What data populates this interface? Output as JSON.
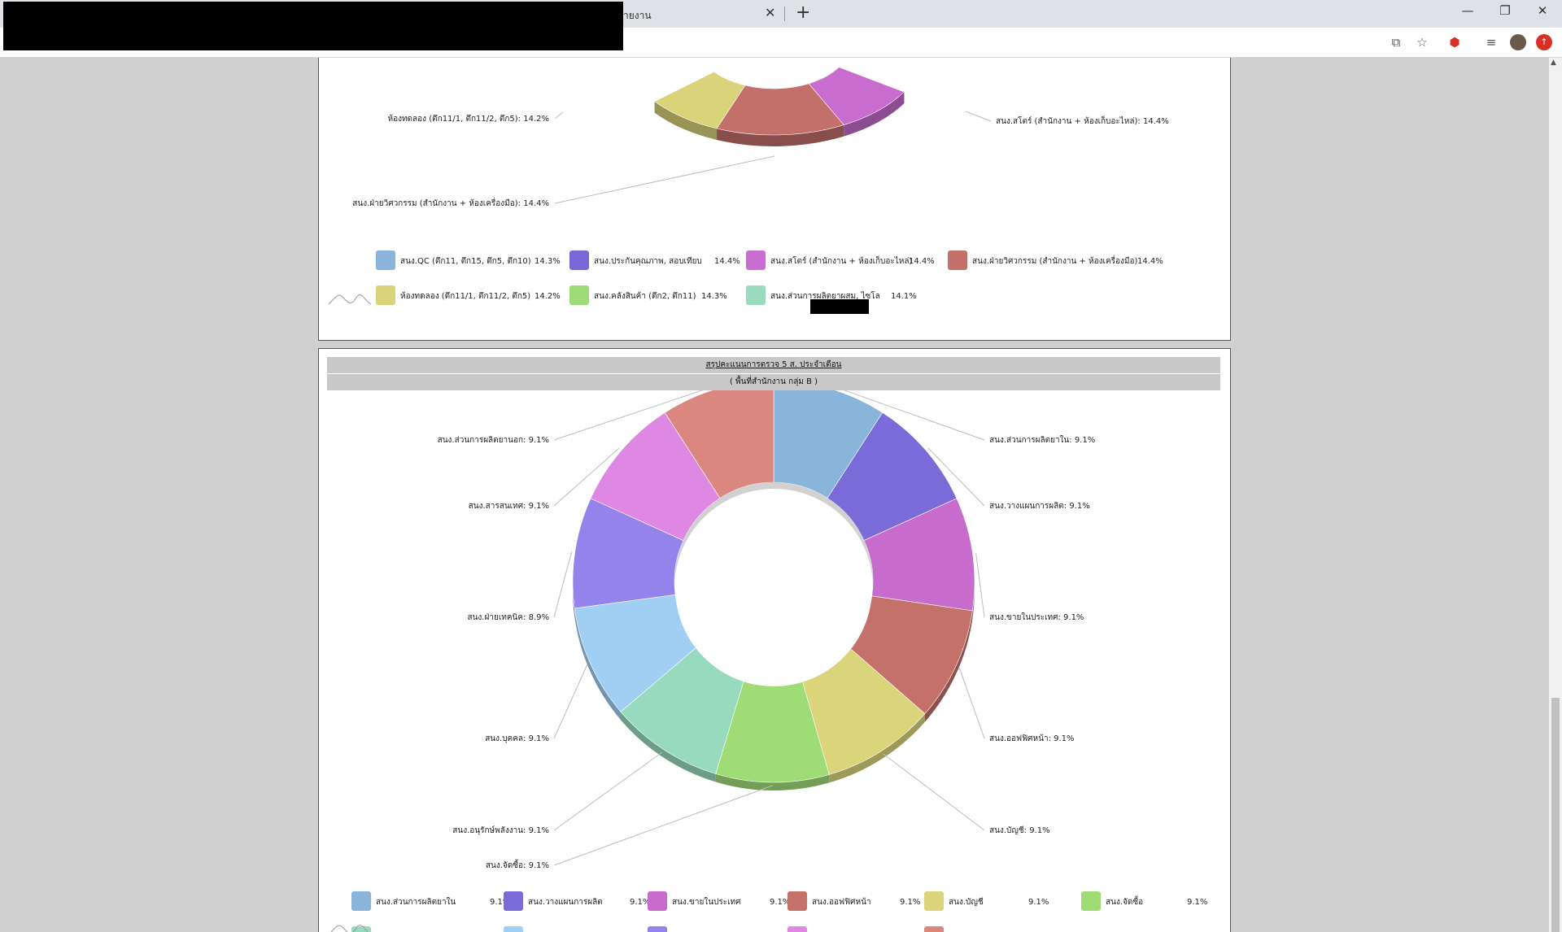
{
  "browser": {
    "tab_title": "ายงาน",
    "tab_close_icon": "close-icon",
    "new_tab_icon": "plus-icon",
    "window_buttons": [
      "minimize-icon",
      "restore-icon",
      "close-icon"
    ],
    "toolbar_icons": [
      "translate-icon",
      "star-icon",
      "extension-icon",
      "playlist-icon",
      "avatar",
      "update-icon"
    ]
  },
  "chart_data": [
    {
      "type": "pie",
      "style": "3d-donut",
      "labels": [
        {
          "text": "สนง.สโตร์ (สำนักงาน + ห้องเก็บอะไหล่): 14.4%",
          "side": "right"
        },
        {
          "text": "ห้องทดลอง (ตึก11/1, ตึก11/2, ตึก5): 14.2%",
          "side": "left"
        },
        {
          "text": "สนง.ฝ่ายวิศวกรรม (สำนักงาน + ห้องเครื่องมือ): 14.4%",
          "side": "left"
        }
      ],
      "legend": [
        {
          "name": "สนง.QC (ตึก11, ตึก15, ตึก5, ตึก10)",
          "value": "14.3%",
          "color": "#8ab4da"
        },
        {
          "name": "สนง.ประกันคุณภาพ, สอบเทียบ",
          "value": "14.4%",
          "color": "#7b68d8"
        },
        {
          "name": "สนง.สโตร์ (สำนักงาน + ห้องเก็บอะไหล่)",
          "value": "14.4%",
          "color": "#c86ccf"
        },
        {
          "name": "สนง.ฝ่ายวิศวกรรม (สำนักงาน + ห้องเครื่องมือ)",
          "value": "14.4%",
          "color": "#c3706b"
        },
        {
          "name": "ห้องทดลอง (ตึก11/1, ตึก11/2, ตึก5)",
          "value": "14.2%",
          "color": "#d9d47a"
        },
        {
          "name": "สนง.คลังสินค้า (ตึก2, ตึก11)",
          "value": "14.3%",
          "color": "#9ddb77"
        },
        {
          "name": "สนง.ส่วนการผลิตยาผสม, ไซโล",
          "value": "14.1%",
          "color": "#9adbbe"
        }
      ],
      "legend_placement": "bottom"
    },
    {
      "type": "pie",
      "style": "3d-donut",
      "title": "สรุปคะแนนการตรวจ 5 ส. ประจำเดือน",
      "subtitle": "( พื้นที่สำนักงาน กลุ่ม B )",
      "slices": [
        {
          "name": "สนง.ส่วนการผลิตยาใน",
          "value": 9.1,
          "label": "9.1%",
          "color": "#89b5da"
        },
        {
          "name": "สนง.วางแผนการผลิต",
          "value": 9.1,
          "label": "9.1%",
          "color": "#7b6bd8"
        },
        {
          "name": "สนง.ขายในประเทศ",
          "value": 9.1,
          "label": "9.1%",
          "color": "#c76ccd"
        },
        {
          "name": "สนง.ออฟฟิศหน้า",
          "value": 9.1,
          "label": "9.1%",
          "color": "#c4716a"
        },
        {
          "name": "สนง.บัญชี",
          "value": 9.1,
          "label": "9.1%",
          "color": "#dad57a"
        },
        {
          "name": "สนง.จัดซื้อ",
          "value": 9.1,
          "label": "9.1%",
          "color": "#9fdc76"
        },
        {
          "name": "สนง.อนุรักษ์พลังงาน",
          "value": 9.1,
          "label": "9.1%",
          "color": "#98dabd"
        },
        {
          "name": "สนง.บุคคล",
          "value": 9.1,
          "label": "9.1%",
          "color": "#a0cff3"
        },
        {
          "name": "สนง.ฝ่ายเทคนิค",
          "value": 8.9,
          "label": "8.9%",
          "color": "#9583ec"
        },
        {
          "name": "สนง.สารสนเทศ",
          "value": 9.1,
          "label": "9.1%",
          "color": "#de87e3"
        },
        {
          "name": "สนง.ส่วนการผลิตยานอก",
          "value": 9.1,
          "label": "9.1%",
          "color": "#d9877f"
        }
      ],
      "legend_placement": "bottom"
    }
  ]
}
